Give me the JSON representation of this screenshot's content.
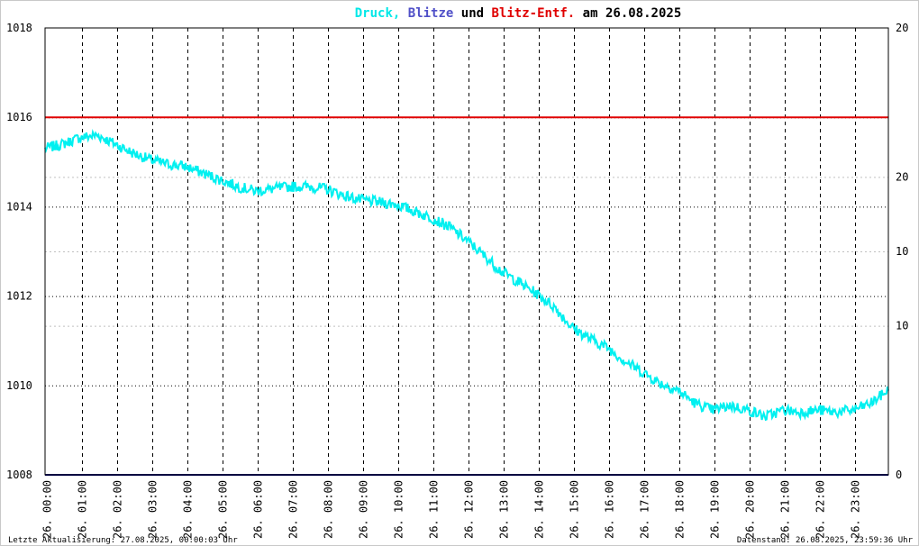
{
  "title": {
    "druck": "Druck,",
    "blitze": "Blitze",
    "und": "und",
    "entf": "Blitz-Entf.",
    "am": "am 26.08.2025",
    "colors": {
      "druck": "#00e8e8",
      "blitze": "#5050c8",
      "entf": "#e00000",
      "text": "#000000"
    }
  },
  "footer": {
    "left": "Letzte Aktualisierung: 27.08.2025, 00:00:03 Uhr",
    "right": "Datenstand: 26.08.2025, 23:59:36 Uhr"
  },
  "chart_data": {
    "type": "line",
    "x_tick_labels": [
      "26. 00:00",
      "26. 01:00",
      "26. 02:00",
      "26. 03:00",
      "26. 04:00",
      "26. 05:00",
      "26. 06:00",
      "26. 07:00",
      "26. 08:00",
      "26. 09:00",
      "26. 10:00",
      "26. 11:00",
      "26. 12:00",
      "26. 13:00",
      "26. 14:00",
      "26. 15:00",
      "26. 16:00",
      "26. 17:00",
      "26. 18:00",
      "26. 19:00",
      "26. 20:00",
      "26. 21:00",
      "26. 22:00",
      "26. 23:00"
    ],
    "xlim_hours": [
      0,
      24
    ],
    "y_left": {
      "ylim": [
        1008,
        1018
      ],
      "ticks": [
        "1008",
        "1010",
        "1012",
        "1014",
        "1016",
        "1018"
      ]
    },
    "y_right": {
      "ticks": [
        {
          "label": "20",
          "color": "#000000",
          "at_left_value": 1018
        },
        {
          "label": "20",
          "color": "#e00000",
          "at_left_value": 1014.6667
        },
        {
          "label": "10",
          "color": "#000000",
          "at_left_value": 1013
        },
        {
          "label": "10",
          "color": "#e00000",
          "at_left_value": 1011.3333
        },
        {
          "label": "0",
          "color": "#000000",
          "at_left_value": 1008
        }
      ]
    },
    "grid": {
      "vertical_dashed": true,
      "horizontal_dotted": true,
      "minor_horizontal_light": true
    },
    "series": [
      {
        "color": "#00f0f0",
        "x_hours": [
          0,
          0.5,
          1,
          1.5,
          2,
          2.5,
          3,
          3.5,
          4,
          4.5,
          5,
          5.5,
          6,
          6.5,
          7,
          7.5,
          8,
          8.5,
          9,
          9.5,
          10,
          10.5,
          11,
          11.5,
          12,
          12.5,
          13,
          13.5,
          14,
          14.5,
          15,
          15.5,
          16,
          16.5,
          17,
          17.5,
          18,
          18.5,
          19,
          19.5,
          20,
          20.5,
          21,
          21.5,
          22,
          22.5,
          23,
          23.5,
          24
        ],
        "values": [
          1015.3,
          1015.4,
          1015.55,
          1015.6,
          1015.4,
          1015.2,
          1015.05,
          1014.95,
          1014.9,
          1014.75,
          1014.6,
          1014.45,
          1014.35,
          1014.4,
          1014.45,
          1014.45,
          1014.4,
          1014.25,
          1014.15,
          1014.1,
          1014.05,
          1013.9,
          1013.75,
          1013.55,
          1013.25,
          1012.9,
          1012.55,
          1012.3,
          1012.05,
          1011.75,
          1011.3,
          1011.05,
          1010.85,
          1010.55,
          1010.3,
          1010.05,
          1009.9,
          1009.6,
          1009.45,
          1009.55,
          1009.45,
          1009.3,
          1009.45,
          1009.4,
          1009.45,
          1009.4,
          1009.45,
          1009.6,
          1009.9
        ],
        "noise_amplitude": 0.12
      },
      {
        "color": "#e00000",
        "constant": 1016
      },
      {
        "color": "#000080",
        "constant": 1008
      }
    ]
  }
}
